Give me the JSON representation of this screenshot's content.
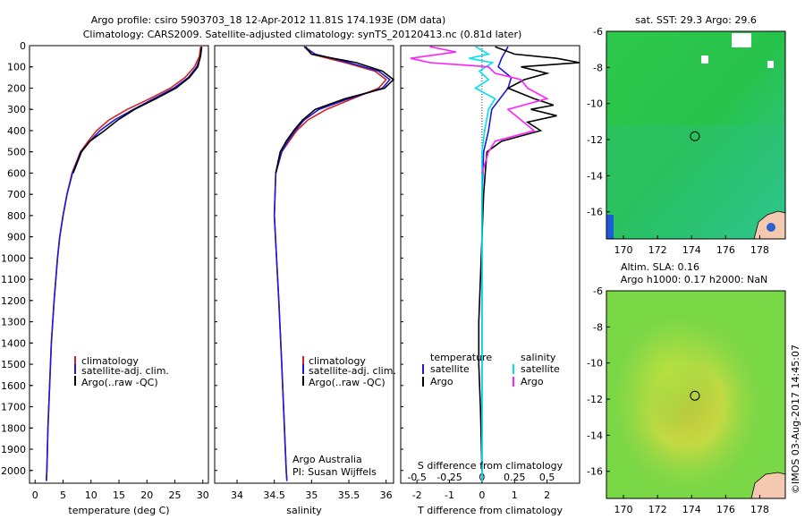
{
  "header": {
    "line1": "Argo profile: csiro 5903703_18 12-Apr-2012 11.81S 174.193E (DM data)",
    "line2": "Climatology: CARS2009. Satellite-adjusted climatology: synTS_20120413.nc (0.81d later)"
  },
  "depth_ticks": [
    0,
    100,
    200,
    300,
    400,
    500,
    600,
    700,
    800,
    900,
    1000,
    1100,
    1200,
    1300,
    1400,
    1500,
    1600,
    1700,
    1800,
    1900,
    2000
  ],
  "colors": {
    "climatology": "#d62020",
    "satellite": "#1a1ad6",
    "argo": "#000000",
    "s_satellite": "#00e0f0",
    "s_argo": "#ff20ff"
  },
  "chart_data": [
    {
      "type": "line",
      "panel": "temperature",
      "xlabel": "temperature (deg C)",
      "xlim": [
        -1,
        31
      ],
      "ylim": [
        2060,
        0
      ],
      "xticks": [
        0,
        5,
        10,
        15,
        20,
        25,
        30
      ],
      "legend": {
        "placement": "lower-middle",
        "entries": [
          "climatology",
          "satellite-adj. clim.",
          "Argo(..raw -QC)"
        ]
      },
      "series": [
        {
          "name": "climatology",
          "depth": [
            5,
            50,
            100,
            150,
            200,
            250,
            300,
            350,
            400,
            450,
            500,
            600,
            700,
            800,
            900,
            1000,
            1200,
            1400,
            1600,
            1800,
            2000,
            2050
          ],
          "values": [
            29.6,
            29.4,
            28.5,
            26.8,
            24.2,
            20.5,
            16.5,
            13.2,
            11.0,
            9.5,
            8.1,
            6.6,
            5.7,
            5.0,
            4.4,
            4.0,
            3.4,
            2.9,
            2.6,
            2.3,
            2.1,
            2.0
          ]
        },
        {
          "name": "satellite-adj. clim.",
          "depth": [
            5,
            50,
            100,
            150,
            200,
            250,
            300,
            350,
            400,
            450,
            500,
            600,
            700,
            800,
            900,
            1000,
            1200,
            1400,
            1600,
            1800,
            2000,
            2050
          ],
          "values": [
            29.8,
            29.6,
            28.9,
            27.4,
            24.8,
            21.2,
            17.6,
            14.2,
            11.6,
            9.8,
            8.2,
            6.7,
            5.7,
            5.0,
            4.4,
            4.0,
            3.4,
            2.9,
            2.6,
            2.3,
            2.1,
            2.0
          ]
        },
        {
          "name": "Argo(..raw -QC)",
          "depth": [
            5,
            60,
            100,
            150,
            200,
            250,
            300,
            350,
            400,
            450,
            500,
            600
          ],
          "values": [
            29.8,
            29.5,
            29.1,
            27.6,
            25.2,
            21.6,
            17.8,
            14.8,
            12.4,
            9.8,
            8.3,
            6.8
          ]
        }
      ]
    },
    {
      "type": "line",
      "panel": "salinity",
      "xlabel": "salinity",
      "xlim": [
        33.7,
        36.1
      ],
      "ylim": [
        2060,
        0
      ],
      "xticks": [
        34,
        34.5,
        35,
        35.5,
        36
      ],
      "legend": {
        "placement": "lower-middle",
        "entries": [
          "climatology",
          "satellite-adj. clim.",
          "Argo(..raw -QC)"
        ]
      },
      "annotation": [
        "Argo Australia",
        "PI: Susan Wijffels"
      ],
      "series": [
        {
          "name": "climatology",
          "depth": [
            5,
            40,
            80,
            120,
            160,
            200,
            250,
            300,
            350,
            400,
            450,
            500,
            600,
            800,
            1000,
            1200,
            1500,
            2000,
            2050
          ],
          "values": [
            34.9,
            35.0,
            35.45,
            35.85,
            36.0,
            35.9,
            35.55,
            35.2,
            34.95,
            34.8,
            34.7,
            34.6,
            34.52,
            34.5,
            34.53,
            34.56,
            34.6,
            34.66,
            34.67
          ]
        },
        {
          "name": "satellite-adj. clim.",
          "depth": [
            5,
            40,
            80,
            120,
            160,
            200,
            250,
            300,
            350,
            400,
            450,
            500,
            600,
            800,
            1000,
            1200,
            1500,
            2000,
            2050
          ],
          "values": [
            34.9,
            35.05,
            35.5,
            35.9,
            36.05,
            35.95,
            35.5,
            35.1,
            34.9,
            34.78,
            34.68,
            34.6,
            34.52,
            34.5,
            34.53,
            34.56,
            34.6,
            34.66,
            34.67
          ]
        },
        {
          "name": "Argo(..raw -QC)",
          "depth": [
            5,
            40,
            80,
            120,
            160,
            200,
            250,
            300,
            350,
            400,
            450,
            500,
            600
          ],
          "values": [
            34.92,
            35.0,
            35.6,
            35.95,
            36.1,
            35.98,
            35.45,
            35.05,
            34.88,
            34.76,
            34.66,
            34.58,
            34.52
          ]
        }
      ]
    },
    {
      "type": "line",
      "panel": "differences",
      "xlabel": "T difference from climatology",
      "xlabel_top": "S difference from climatology",
      "xlim": [
        -2.5,
        3
      ],
      "ylim": [
        2060,
        0
      ],
      "xticks": [
        -2,
        -1,
        0,
        1,
        2
      ],
      "xticks_s": [
        -0.5,
        -0.25,
        0,
        0.25,
        0.5
      ],
      "legend": {
        "placement": "lower-middle",
        "groups": [
          "temperature",
          "salinity"
        ],
        "entries": [
          "satellite",
          "Argo",
          "satellite",
          "Argo"
        ]
      },
      "series": [
        {
          "name": "temperature satellite",
          "depth": [
            5,
            60,
            100,
            150,
            200,
            300,
            400,
            500,
            700,
            1000,
            1500,
            2050
          ],
          "values": [
            0.8,
            0.6,
            0.5,
            0.9,
            0.8,
            0.3,
            0.2,
            0.05,
            0,
            0,
            0,
            0
          ]
        },
        {
          "name": "temperature Argo",
          "depth": [
            5,
            40,
            60,
            80,
            100,
            130,
            160,
            200,
            250,
            280,
            300,
            330,
            360,
            400,
            450,
            500,
            600,
            700,
            900,
            1100,
            1300,
            1500,
            1700,
            2000
          ],
          "values": [
            0.4,
            1.0,
            2.3,
            3.0,
            1.2,
            2.0,
            1.3,
            0.8,
            1.6,
            2.2,
            1.5,
            2.3,
            1.4,
            1.8,
            0.6,
            0.15,
            0.1,
            0.05,
            0,
            -0.05,
            -0.1,
            -0.1,
            -0.05,
            0
          ]
        },
        {
          "name": "salinity satellite",
          "depth": [
            5,
            40,
            60,
            80,
            120,
            160,
            200,
            250,
            300,
            400,
            500,
            600,
            800,
            1000,
            1500,
            2050
          ],
          "values": [
            -0.05,
            0.05,
            -0.1,
            0.08,
            -0.02,
            0.05,
            -0.05,
            0.1,
            0.05,
            0.02,
            0,
            0,
            0,
            0,
            0,
            0
          ]
        },
        {
          "name": "salinity Argo",
          "depth": [
            5,
            30,
            60,
            80,
            100,
            130,
            160,
            200,
            250,
            300,
            350,
            400,
            450,
            500,
            600
          ],
          "values": [
            -0.4,
            -0.2,
            -0.55,
            -0.4,
            0.05,
            0.1,
            0.3,
            0.35,
            0.5,
            0.2,
            0.3,
            0.4,
            0.1,
            0.05,
            0
          ]
        }
      ]
    },
    {
      "type": "heatmap",
      "panel": "sst-map",
      "title": "sat. SST: 29.3 Argo: 29.6",
      "xlim": [
        169,
        179.5
      ],
      "ylim": [
        -17.5,
        -6
      ],
      "xticks": [
        170,
        172,
        174,
        176,
        178
      ],
      "yticks": [
        -6,
        -8,
        -10,
        -12,
        -14,
        -16
      ],
      "marker": {
        "lon": 174.193,
        "lat": -11.81
      }
    },
    {
      "type": "heatmap",
      "panel": "sla-map",
      "title_line1": "Altim. SLA: 0.16",
      "title_line2": "Argo h1000: 0.17 h2000: NaN",
      "xlim": [
        169,
        179.5
      ],
      "ylim": [
        -17.5,
        -6
      ],
      "xticks": [
        170,
        172,
        174,
        176,
        178
      ],
      "yticks": [
        -6,
        -8,
        -10,
        -12,
        -14,
        -16
      ],
      "marker": {
        "lon": 174.193,
        "lat": -11.81
      }
    }
  ],
  "footer": {
    "credit": "©IMOS 03-Aug-2017 14:45:07"
  }
}
